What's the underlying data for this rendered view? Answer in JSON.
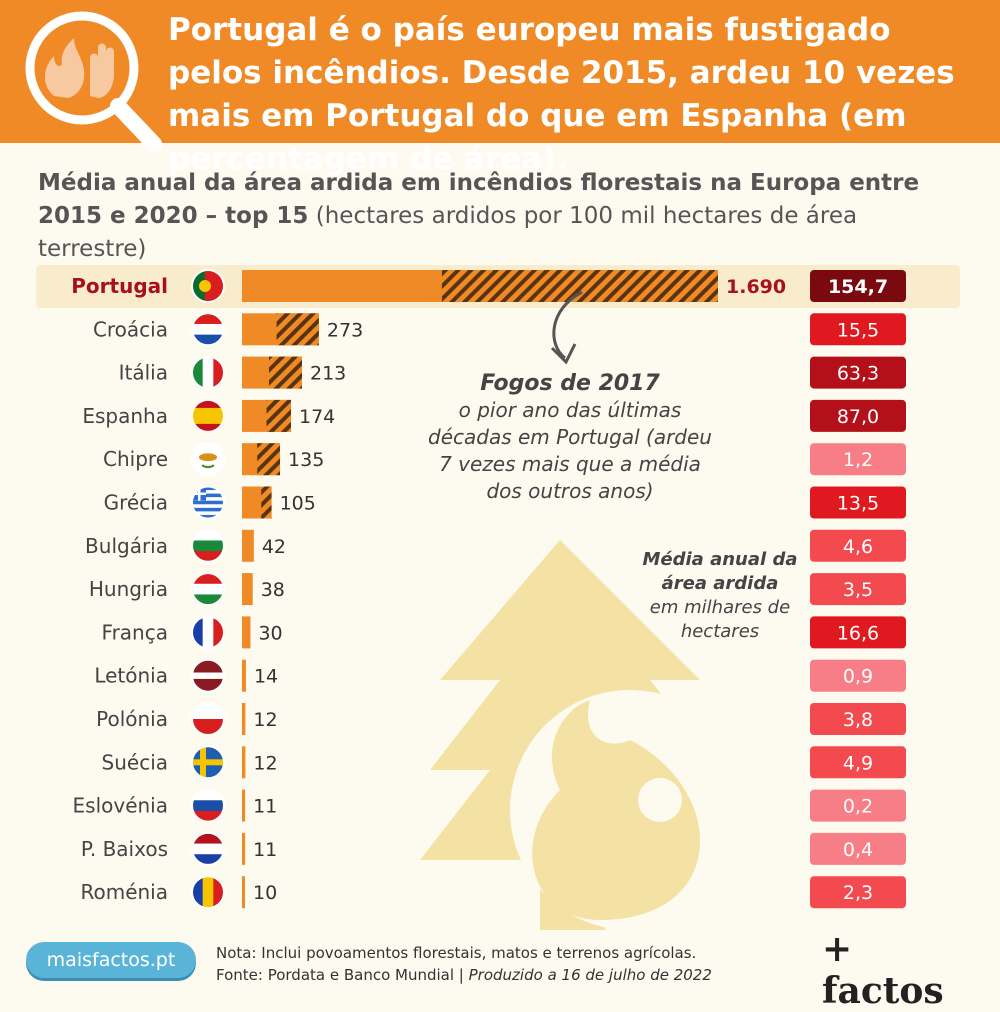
{
  "header": {
    "headline": "Portugal é o país europeu mais fustigado pelos incêndios. Desde 2015, ardeu 10 vezes mais em Portugal do que em Espanha (em percentagem de área)."
  },
  "subtitle": {
    "bold": "Média anual da área ardida em incêndios florestais na Europa entre 2015 e 2020 – top 15",
    "normal": "(hectares ardidos por 100 mil hectares de área terrestre)"
  },
  "annotation": {
    "title": "Fogos de 2017",
    "text": "o pior ano das últimas décadas em Portugal (ardeu 7 vezes mais que a média dos outros anos)"
  },
  "side_label": {
    "bold": "Média anual da área ardida",
    "normal": "em milhares de hectares"
  },
  "footnote": {
    "note": "Nota: Inclui povoamentos florestais, matos e terrenos agrícolas.",
    "source": "Fonte: Pordata e Banco Mundial |",
    "produced": "Produzido a 16 de julho de 2022"
  },
  "site": "maisfactos.pt",
  "logo": "+ factos",
  "colors": {
    "bar": "#ef8a26",
    "hatch": "#5a3410",
    "highlight": "#a8101a",
    "tree": "#f4e2a4"
  },
  "chart_data": {
    "type": "bar",
    "orientation": "horizontal",
    "categories": [
      "Portugal",
      "Croácia",
      "Itália",
      "Espanha",
      "Chipre",
      "Grécia",
      "Bulgária",
      "Hungria",
      "França",
      "Letónia",
      "Polónia",
      "Suécia",
      "Eslovénia",
      "P. Baixos",
      "Roménia"
    ],
    "series": [
      {
        "name": "hectares ardidos por 100 mil hectares de área terrestre",
        "values": [
          1690,
          273,
          213,
          174,
          135,
          105,
          42,
          38,
          30,
          14,
          12,
          12,
          11,
          11,
          10
        ],
        "labels": [
          "1.690",
          "273",
          "213",
          "174",
          "135",
          "105",
          "42",
          "38",
          "30",
          "14",
          "12",
          "12",
          "11",
          "11",
          "10"
        ]
      },
      {
        "name": "Média anual da área ardida em milhares de hectares",
        "values": [
          154.7,
          15.5,
          63.3,
          87.0,
          1.2,
          13.5,
          4.6,
          3.5,
          16.6,
          0.9,
          3.8,
          4.9,
          0.2,
          0.4,
          2.3
        ],
        "labels": [
          "154,7",
          "15,5",
          "63,3",
          "87,0",
          "1,2",
          "13,5",
          "4,6",
          "3,5",
          "16,6",
          "0,9",
          "3,8",
          "4,9",
          "0,2",
          "0,4",
          "2,3"
        ]
      }
    ],
    "hatched_share": [
      0.58,
      0.55,
      0.55,
      0.5,
      0.6,
      0.35,
      0,
      0,
      0,
      0,
      0,
      0,
      0,
      0,
      0
    ],
    "xlim": [
      0,
      1690
    ]
  }
}
